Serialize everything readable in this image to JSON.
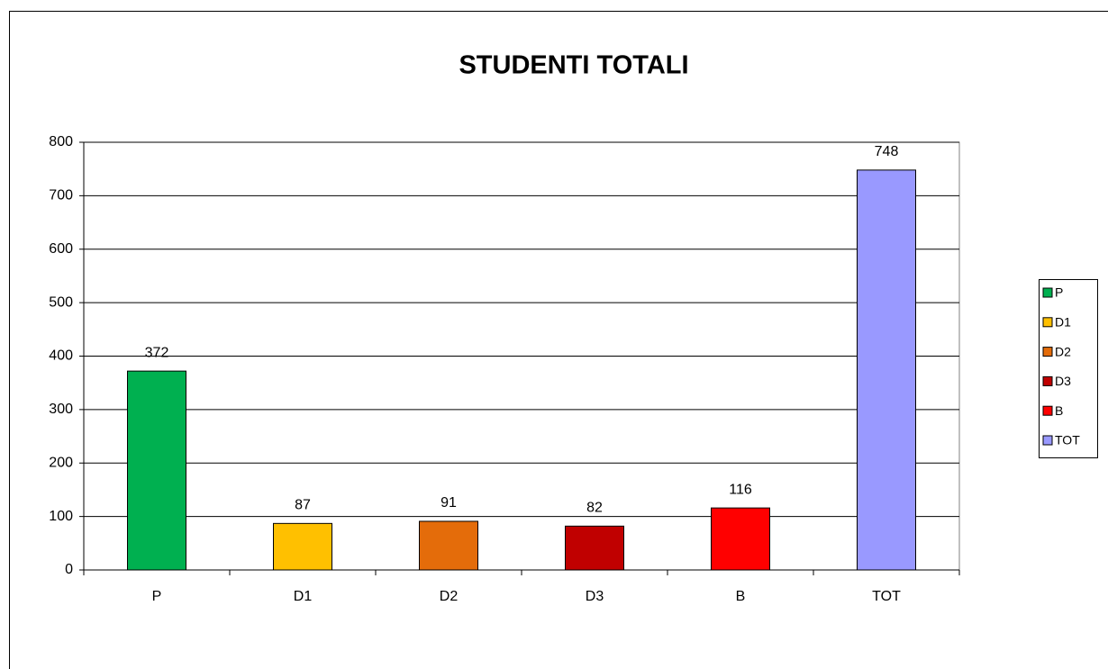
{
  "chart_data": {
    "type": "bar",
    "title": "STUDENTI TOTALI",
    "categories": [
      "P",
      "D1",
      "D2",
      "D3",
      "B",
      "TOT"
    ],
    "values": [
      372,
      87,
      91,
      82,
      116,
      748
    ],
    "colors": [
      "#00b050",
      "#ffc000",
      "#e46c0a",
      "#c00000",
      "#ff0000",
      "#9999ff"
    ],
    "ylim": [
      0,
      800
    ],
    "yticks": [
      0,
      100,
      200,
      300,
      400,
      500,
      600,
      700,
      800
    ],
    "grid": true,
    "legend": "right"
  }
}
